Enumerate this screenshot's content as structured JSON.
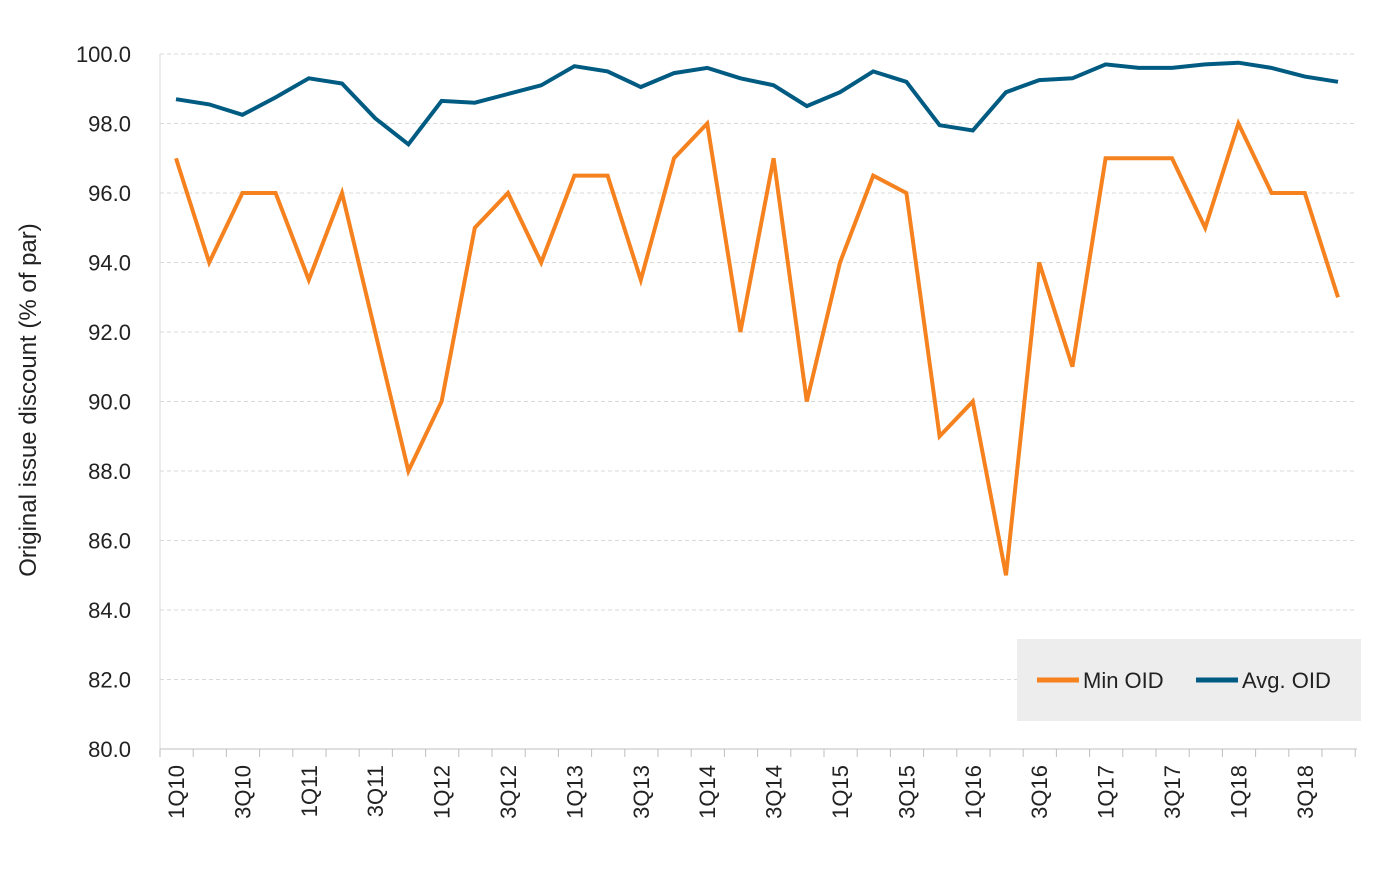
{
  "chart_data": {
    "type": "line",
    "title": "",
    "xlabel": "",
    "ylabel": "Original issue discount (% of par)",
    "ylim": [
      80,
      100
    ],
    "yticks": [
      "80.0",
      "82.0",
      "84.0",
      "86.0",
      "88.0",
      "90.0",
      "92.0",
      "94.0",
      "96.0",
      "98.0",
      "100.0"
    ],
    "grid": "horizontal dashed",
    "legend_position": "bottom-right",
    "categories": [
      "1Q10",
      "2Q10",
      "3Q10",
      "4Q10",
      "1Q11",
      "2Q11",
      "3Q11",
      "4Q11",
      "1Q12",
      "2Q12",
      "3Q12",
      "4Q12",
      "1Q13",
      "2Q13",
      "3Q13",
      "4Q13",
      "1Q14",
      "2Q14",
      "3Q14",
      "4Q14",
      "1Q15",
      "2Q15",
      "3Q15",
      "4Q15",
      "1Q16",
      "2Q16",
      "3Q16",
      "4Q16",
      "1Q17",
      "2Q17",
      "3Q17",
      "4Q17",
      "1Q18",
      "2Q18",
      "3Q18",
      "4Q18"
    ],
    "tick_labels": [
      "1Q10",
      "3Q10",
      "1Q11",
      "3Q11",
      "1Q12",
      "3Q12",
      "1Q13",
      "3Q13",
      "1Q14",
      "3Q14",
      "1Q15",
      "3Q15",
      "1Q16",
      "3Q16",
      "1Q17",
      "3Q17",
      "1Q18",
      "3Q18"
    ],
    "series": [
      {
        "name": "Min OID",
        "color": "#F5821F",
        "values": [
          97.0,
          94.0,
          96.0,
          96.0,
          93.5,
          96.0,
          92.0,
          88.0,
          90.0,
          95.0,
          96.0,
          94.0,
          96.5,
          96.5,
          93.5,
          97.0,
          98.0,
          92.0,
          97.0,
          90.0,
          94.0,
          96.5,
          96.0,
          89.0,
          90.0,
          85.0,
          94.0,
          91.0,
          97.0,
          97.0,
          97.0,
          95.0,
          98.0,
          96.0,
          96.0,
          93.0
        ]
      },
      {
        "name": "Avg. OID",
        "color": "#005B82",
        "values": [
          98.7,
          98.55,
          98.25,
          98.75,
          99.3,
          99.15,
          98.15,
          97.4,
          98.65,
          98.6,
          98.85,
          99.1,
          99.65,
          99.5,
          99.05,
          99.45,
          99.6,
          99.3,
          99.1,
          98.5,
          98.9,
          99.5,
          99.2,
          97.95,
          97.8,
          98.9,
          99.25,
          99.3,
          99.7,
          99.6,
          99.6,
          99.7,
          99.75,
          99.6,
          99.35,
          99.2
        ]
      }
    ]
  }
}
